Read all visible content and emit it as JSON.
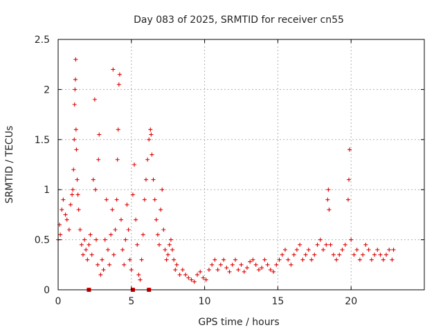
{
  "chart_data": {
    "type": "scatter",
    "title": "Day 083 of 2025, SRMTID for receiver cn55",
    "xlabel": "GPS time / hours",
    "ylabel": "SRMTID / TECUs",
    "xlim": [
      0,
      25
    ],
    "ylim": [
      0,
      2.5
    ],
    "xticks": [
      0,
      5,
      10,
      15,
      20
    ],
    "xtick_labels": [
      "0",
      "5",
      "10",
      "15",
      "20"
    ],
    "yticks": [
      0,
      0.5,
      1,
      1.5,
      2,
      2.5
    ],
    "ytick_labels": [
      "0",
      "0.5",
      "1",
      "1.5",
      "2",
      "2.5"
    ],
    "grid": true,
    "marker": "+",
    "color": "#e00000",
    "series": [
      {
        "name": "SRMTID",
        "x": [
          0.0,
          0.1,
          0.15,
          0.25,
          0.35,
          0.5,
          0.6,
          0.75,
          0.85,
          0.95,
          1.0,
          1.05,
          1.1,
          1.12,
          1.15,
          1.18,
          1.2,
          1.22,
          1.25,
          1.3,
          1.35,
          1.4,
          1.5,
          1.6,
          1.7,
          1.8,
          1.9,
          2.0,
          2.1,
          2.2,
          2.3,
          2.4,
          2.5,
          2.55,
          2.6,
          2.7,
          2.75,
          2.8,
          2.9,
          3.0,
          3.1,
          3.2,
          3.3,
          3.4,
          3.5,
          3.6,
          3.7,
          3.75,
          3.8,
          3.9,
          4.0,
          4.05,
          4.1,
          4.15,
          4.2,
          4.3,
          4.4,
          4.5,
          4.6,
          4.7,
          4.8,
          4.9,
          5.0,
          5.1,
          5.2,
          5.3,
          5.4,
          5.5,
          5.6,
          5.7,
          5.8,
          5.9,
          6.0,
          6.1,
          6.2,
          6.3,
          6.35,
          6.4,
          6.5,
          6.6,
          6.7,
          6.8,
          6.9,
          7.0,
          7.1,
          7.2,
          7.3,
          7.4,
          7.5,
          7.6,
          7.7,
          7.8,
          7.9,
          8.0,
          8.1,
          8.3,
          8.5,
          8.7,
          8.9,
          9.1,
          9.3,
          9.5,
          9.7,
          9.9,
          10.1,
          10.3,
          10.5,
          10.7,
          10.9,
          11.1,
          11.3,
          11.5,
          11.7,
          11.9,
          12.1,
          12.3,
          12.5,
          12.7,
          12.9,
          13.1,
          13.3,
          13.5,
          13.7,
          13.9,
          14.1,
          14.3,
          14.5,
          14.7,
          14.9,
          15.1,
          15.3,
          15.5,
          15.7,
          15.9,
          16.1,
          16.3,
          16.5,
          16.7,
          16.9,
          17.1,
          17.3,
          17.5,
          17.7,
          17.9,
          18.1,
          18.3,
          18.4,
          18.45,
          18.5,
          18.6,
          18.8,
          19.0,
          19.2,
          19.4,
          19.6,
          19.8,
          19.85,
          19.9,
          20.0,
          20.2,
          20.4,
          20.6,
          20.8,
          21.0,
          21.2,
          21.4,
          21.6,
          21.8,
          22.0,
          22.2,
          22.4,
          22.6,
          22.8,
          22.9
        ],
        "y": [
          0.5,
          0.65,
          0.55,
          0.8,
          0.9,
          0.75,
          0.7,
          0.6,
          0.85,
          0.95,
          1.0,
          1.2,
          1.5,
          1.85,
          2.0,
          2.1,
          2.3,
          1.6,
          1.4,
          1.1,
          0.95,
          0.8,
          0.6,
          0.45,
          0.35,
          0.5,
          0.4,
          0.3,
          0.45,
          0.55,
          0.35,
          1.1,
          1.9,
          1.0,
          0.5,
          0.25,
          1.3,
          1.55,
          0.15,
          0.3,
          0.2,
          0.5,
          0.9,
          0.4,
          0.25,
          0.55,
          0.8,
          2.2,
          0.35,
          0.6,
          0.9,
          1.3,
          1.6,
          2.05,
          2.15,
          0.7,
          0.4,
          0.25,
          0.5,
          0.85,
          0.6,
          0.3,
          0.2,
          0.95,
          1.25,
          0.7,
          0.45,
          0.15,
          0.1,
          0.3,
          0.55,
          0.9,
          1.1,
          1.3,
          1.5,
          1.6,
          1.55,
          1.35,
          1.1,
          0.9,
          0.7,
          0.55,
          0.45,
          0.8,
          1.0,
          0.6,
          0.4,
          0.3,
          0.35,
          0.45,
          0.5,
          0.4,
          0.3,
          0.2,
          0.25,
          0.15,
          0.2,
          0.15,
          0.12,
          0.1,
          0.08,
          0.15,
          0.18,
          0.12,
          0.1,
          0.2,
          0.25,
          0.3,
          0.2,
          0.25,
          0.3,
          0.22,
          0.18,
          0.25,
          0.3,
          0.2,
          0.25,
          0.18,
          0.22,
          0.28,
          0.3,
          0.25,
          0.2,
          0.22,
          0.3,
          0.25,
          0.2,
          0.18,
          0.25,
          0.3,
          0.35,
          0.4,
          0.3,
          0.25,
          0.35,
          0.4,
          0.45,
          0.3,
          0.35,
          0.4,
          0.3,
          0.35,
          0.45,
          0.5,
          0.4,
          0.45,
          0.9,
          1.0,
          0.8,
          0.45,
          0.35,
          0.3,
          0.35,
          0.4,
          0.45,
          0.9,
          1.1,
          1.4,
          0.5,
          0.35,
          0.4,
          0.3,
          0.35,
          0.45,
          0.4,
          0.3,
          0.35,
          0.4,
          0.35,
          0.3,
          0.35,
          0.4,
          0.3,
          0.4
        ]
      }
    ],
    "flagged_points": {
      "x": [
        2.1,
        5.1,
        6.2
      ],
      "y": [
        0,
        0,
        0
      ]
    }
  }
}
